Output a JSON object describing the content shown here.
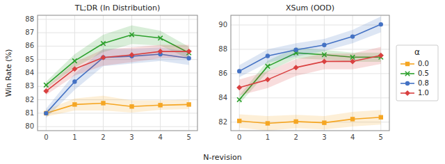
{
  "chart_data": [
    {
      "type": "line",
      "title": "TL;DR (In Distribution)",
      "xlabel": "N-revision",
      "ylabel": "Win Rate (%)",
      "x": [
        0,
        1,
        2,
        3,
        4,
        5
      ],
      "xlim": [
        -0.3,
        5.3
      ],
      "xticks": [
        0,
        1,
        2,
        3,
        4,
        5
      ],
      "ylim": [
        79.7,
        88.3
      ],
      "yticks": [
        80,
        81,
        82,
        83,
        84,
        85,
        86,
        87,
        88
      ],
      "grid": true,
      "series": [
        {
          "color": "#f5a623",
          "marker": "square",
          "values": [
            81.0,
            81.65,
            81.75,
            81.5,
            81.6,
            81.65
          ],
          "std": [
            0.25,
            0.45,
            0.55,
            0.45,
            0.35,
            0.35
          ]
        },
        {
          "color": "#2ca02c",
          "marker": "x",
          "values": [
            83.1,
            84.9,
            86.2,
            86.85,
            86.6,
            85.5
          ],
          "std": [
            0.25,
            0.5,
            0.65,
            0.7,
            0.55,
            0.45
          ]
        },
        {
          "color": "#4472c4",
          "marker": "circle",
          "values": [
            81.0,
            83.35,
            85.15,
            85.25,
            85.4,
            85.1
          ],
          "std": [
            0.35,
            0.6,
            0.65,
            0.55,
            0.5,
            0.5
          ]
        },
        {
          "color": "#d94040",
          "marker": "diamond",
          "values": [
            82.65,
            84.3,
            85.15,
            85.35,
            85.6,
            85.6
          ],
          "std": [
            0.3,
            0.5,
            0.6,
            0.55,
            0.5,
            0.5
          ]
        }
      ]
    },
    {
      "type": "line",
      "title": "XSum (OOD)",
      "x": [
        0,
        1,
        2,
        3,
        4,
        5
      ],
      "xlim": [
        -0.3,
        5.3
      ],
      "xticks": [
        0,
        1,
        2,
        3,
        4,
        5
      ],
      "ylim": [
        81.3,
        90.8
      ],
      "yticks": [
        82,
        84,
        86,
        88,
        90
      ],
      "grid": true,
      "legend": "right",
      "legend_title": "α",
      "series": [
        {
          "name": "0.0",
          "color": "#f5a623",
          "marker": "square",
          "values": [
            82.1,
            81.9,
            82.05,
            81.95,
            82.25,
            82.4
          ],
          "std": [
            0.55,
            0.6,
            0.55,
            0.55,
            0.6,
            0.6
          ]
        },
        {
          "name": "0.5",
          "color": "#2ca02c",
          "marker": "x",
          "values": [
            83.85,
            86.6,
            87.7,
            87.55,
            87.35,
            87.35
          ],
          "std": [
            0.35,
            0.45,
            0.45,
            0.4,
            0.38,
            0.38
          ]
        },
        {
          "name": "0.8",
          "color": "#4472c4",
          "marker": "circle",
          "values": [
            86.2,
            87.45,
            87.95,
            88.35,
            89.05,
            90.05
          ],
          "std": [
            0.5,
            0.55,
            0.55,
            0.5,
            0.55,
            0.65
          ]
        },
        {
          "name": "1.0",
          "color": "#d94040",
          "marker": "diamond",
          "values": [
            84.85,
            85.5,
            86.5,
            87.0,
            87.0,
            87.5
          ],
          "std": [
            0.65,
            0.7,
            0.7,
            0.65,
            0.65,
            0.7
          ]
        }
      ]
    }
  ]
}
